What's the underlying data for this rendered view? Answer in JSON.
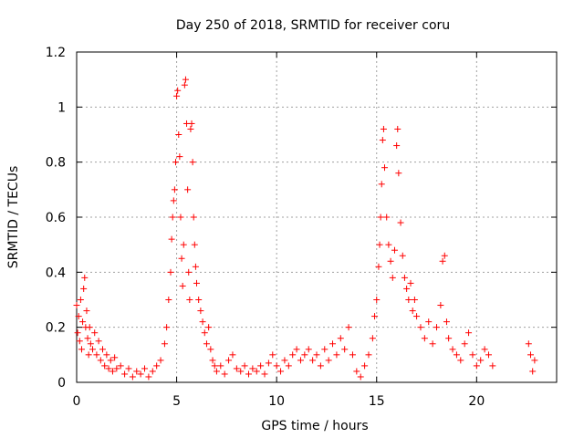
{
  "chart_data": {
    "type": "scatter",
    "title": "Day 250 of 2018, SRMTID for receiver coru",
    "xlabel": "GPS time / hours",
    "ylabel": "SRMTID / TECUs",
    "xlim": [
      0,
      24
    ],
    "ylim": [
      0,
      1.2
    ],
    "xticks": [
      0,
      5,
      10,
      15,
      20
    ],
    "xtick_labels": [
      "0",
      "5",
      "10",
      "15",
      "20"
    ],
    "yticks": [
      0,
      0.2,
      0.4,
      0.6,
      0.8,
      1,
      1.2
    ],
    "ytick_labels": [
      "0",
      "0.2",
      "0.4",
      "0.6",
      "0.8",
      "1",
      "1.2"
    ],
    "grid": true,
    "marker": "+",
    "color": "#ff0000",
    "series": [
      {
        "name": "SRMTID",
        "points": [
          [
            0.0,
            0.28
          ],
          [
            0.05,
            0.18
          ],
          [
            0.1,
            0.24
          ],
          [
            0.15,
            0.15
          ],
          [
            0.2,
            0.3
          ],
          [
            0.25,
            0.12
          ],
          [
            0.3,
            0.22
          ],
          [
            0.35,
            0.34
          ],
          [
            0.4,
            0.38
          ],
          [
            0.45,
            0.2
          ],
          [
            0.5,
            0.26
          ],
          [
            0.55,
            0.16
          ],
          [
            0.6,
            0.1
          ],
          [
            0.65,
            0.2
          ],
          [
            0.7,
            0.14
          ],
          [
            0.8,
            0.12
          ],
          [
            0.9,
            0.18
          ],
          [
            1.0,
            0.1
          ],
          [
            1.1,
            0.15
          ],
          [
            1.2,
            0.08
          ],
          [
            1.3,
            0.12
          ],
          [
            1.4,
            0.06
          ],
          [
            1.5,
            0.1
          ],
          [
            1.6,
            0.05
          ],
          [
            1.7,
            0.08
          ],
          [
            1.8,
            0.04
          ],
          [
            1.9,
            0.09
          ],
          [
            2.0,
            0.05
          ],
          [
            2.2,
            0.06
          ],
          [
            2.4,
            0.03
          ],
          [
            2.6,
            0.05
          ],
          [
            2.8,
            0.02
          ],
          [
            3.0,
            0.04
          ],
          [
            3.2,
            0.03
          ],
          [
            3.4,
            0.05
          ],
          [
            3.6,
            0.02
          ],
          [
            3.8,
            0.04
          ],
          [
            4.0,
            0.06
          ],
          [
            4.2,
            0.08
          ],
          [
            4.4,
            0.14
          ],
          [
            4.5,
            0.2
          ],
          [
            4.6,
            0.3
          ],
          [
            4.7,
            0.4
          ],
          [
            4.75,
            0.52
          ],
          [
            4.8,
            0.6
          ],
          [
            4.85,
            0.66
          ],
          [
            4.9,
            0.7
          ],
          [
            4.95,
            0.8
          ],
          [
            5.0,
            1.04
          ],
          [
            5.05,
            1.06
          ],
          [
            5.1,
            0.9
          ],
          [
            5.15,
            0.82
          ],
          [
            5.2,
            0.6
          ],
          [
            5.25,
            0.45
          ],
          [
            5.3,
            0.35
          ],
          [
            5.35,
            0.5
          ],
          [
            5.4,
            1.08
          ],
          [
            5.45,
            1.1
          ],
          [
            5.5,
            0.94
          ],
          [
            5.55,
            0.7
          ],
          [
            5.6,
            0.4
          ],
          [
            5.65,
            0.3
          ],
          [
            5.7,
            0.92
          ],
          [
            5.75,
            0.94
          ],
          [
            5.8,
            0.8
          ],
          [
            5.85,
            0.6
          ],
          [
            5.9,
            0.5
          ],
          [
            5.95,
            0.42
          ],
          [
            6.0,
            0.36
          ],
          [
            6.1,
            0.3
          ],
          [
            6.2,
            0.26
          ],
          [
            6.3,
            0.22
          ],
          [
            6.4,
            0.18
          ],
          [
            6.5,
            0.14
          ],
          [
            6.6,
            0.2
          ],
          [
            6.7,
            0.12
          ],
          [
            6.8,
            0.08
          ],
          [
            6.9,
            0.06
          ],
          [
            7.0,
            0.04
          ],
          [
            7.2,
            0.06
          ],
          [
            7.4,
            0.03
          ],
          [
            7.6,
            0.08
          ],
          [
            7.8,
            0.1
          ],
          [
            8.0,
            0.05
          ],
          [
            8.2,
            0.04
          ],
          [
            8.4,
            0.06
          ],
          [
            8.6,
            0.03
          ],
          [
            8.8,
            0.05
          ],
          [
            9.0,
            0.04
          ],
          [
            9.2,
            0.06
          ],
          [
            9.4,
            0.03
          ],
          [
            9.6,
            0.07
          ],
          [
            9.8,
            0.1
          ],
          [
            10.0,
            0.06
          ],
          [
            10.2,
            0.04
          ],
          [
            10.4,
            0.08
          ],
          [
            10.6,
            0.06
          ],
          [
            10.8,
            0.1
          ],
          [
            11.0,
            0.12
          ],
          [
            11.2,
            0.08
          ],
          [
            11.4,
            0.1
          ],
          [
            11.6,
            0.12
          ],
          [
            11.8,
            0.08
          ],
          [
            12.0,
            0.1
          ],
          [
            12.2,
            0.06
          ],
          [
            12.4,
            0.12
          ],
          [
            12.6,
            0.08
          ],
          [
            12.8,
            0.14
          ],
          [
            13.0,
            0.1
          ],
          [
            13.2,
            0.16
          ],
          [
            13.4,
            0.12
          ],
          [
            13.6,
            0.2
          ],
          [
            13.8,
            0.1
          ],
          [
            14.0,
            0.04
          ],
          [
            14.2,
            0.02
          ],
          [
            14.4,
            0.06
          ],
          [
            14.6,
            0.1
          ],
          [
            14.8,
            0.16
          ],
          [
            14.9,
            0.24
          ],
          [
            15.0,
            0.3
          ],
          [
            15.1,
            0.42
          ],
          [
            15.15,
            0.5
          ],
          [
            15.2,
            0.6
          ],
          [
            15.25,
            0.72
          ],
          [
            15.3,
            0.88
          ],
          [
            15.35,
            0.92
          ],
          [
            15.4,
            0.78
          ],
          [
            15.5,
            0.6
          ],
          [
            15.6,
            0.5
          ],
          [
            15.7,
            0.44
          ],
          [
            15.8,
            0.38
          ],
          [
            15.9,
            0.48
          ],
          [
            16.0,
            0.86
          ],
          [
            16.05,
            0.92
          ],
          [
            16.1,
            0.76
          ],
          [
            16.2,
            0.58
          ],
          [
            16.3,
            0.46
          ],
          [
            16.4,
            0.38
          ],
          [
            16.5,
            0.34
          ],
          [
            16.6,
            0.3
          ],
          [
            16.7,
            0.36
          ],
          [
            16.8,
            0.26
          ],
          [
            16.9,
            0.3
          ],
          [
            17.0,
            0.24
          ],
          [
            17.2,
            0.2
          ],
          [
            17.4,
            0.16
          ],
          [
            17.6,
            0.22
          ],
          [
            17.8,
            0.14
          ],
          [
            18.0,
            0.2
          ],
          [
            18.2,
            0.28
          ],
          [
            18.3,
            0.44
          ],
          [
            18.4,
            0.46
          ],
          [
            18.5,
            0.22
          ],
          [
            18.6,
            0.16
          ],
          [
            18.8,
            0.12
          ],
          [
            19.0,
            0.1
          ],
          [
            19.2,
            0.08
          ],
          [
            19.4,
            0.14
          ],
          [
            19.6,
            0.18
          ],
          [
            19.8,
            0.1
          ],
          [
            20.0,
            0.06
          ],
          [
            20.2,
            0.08
          ],
          [
            20.4,
            0.12
          ],
          [
            20.6,
            0.1
          ],
          [
            20.8,
            0.06
          ],
          [
            22.6,
            0.14
          ],
          [
            22.7,
            0.1
          ],
          [
            22.8,
            0.04
          ],
          [
            22.9,
            0.08
          ]
        ]
      }
    ]
  }
}
